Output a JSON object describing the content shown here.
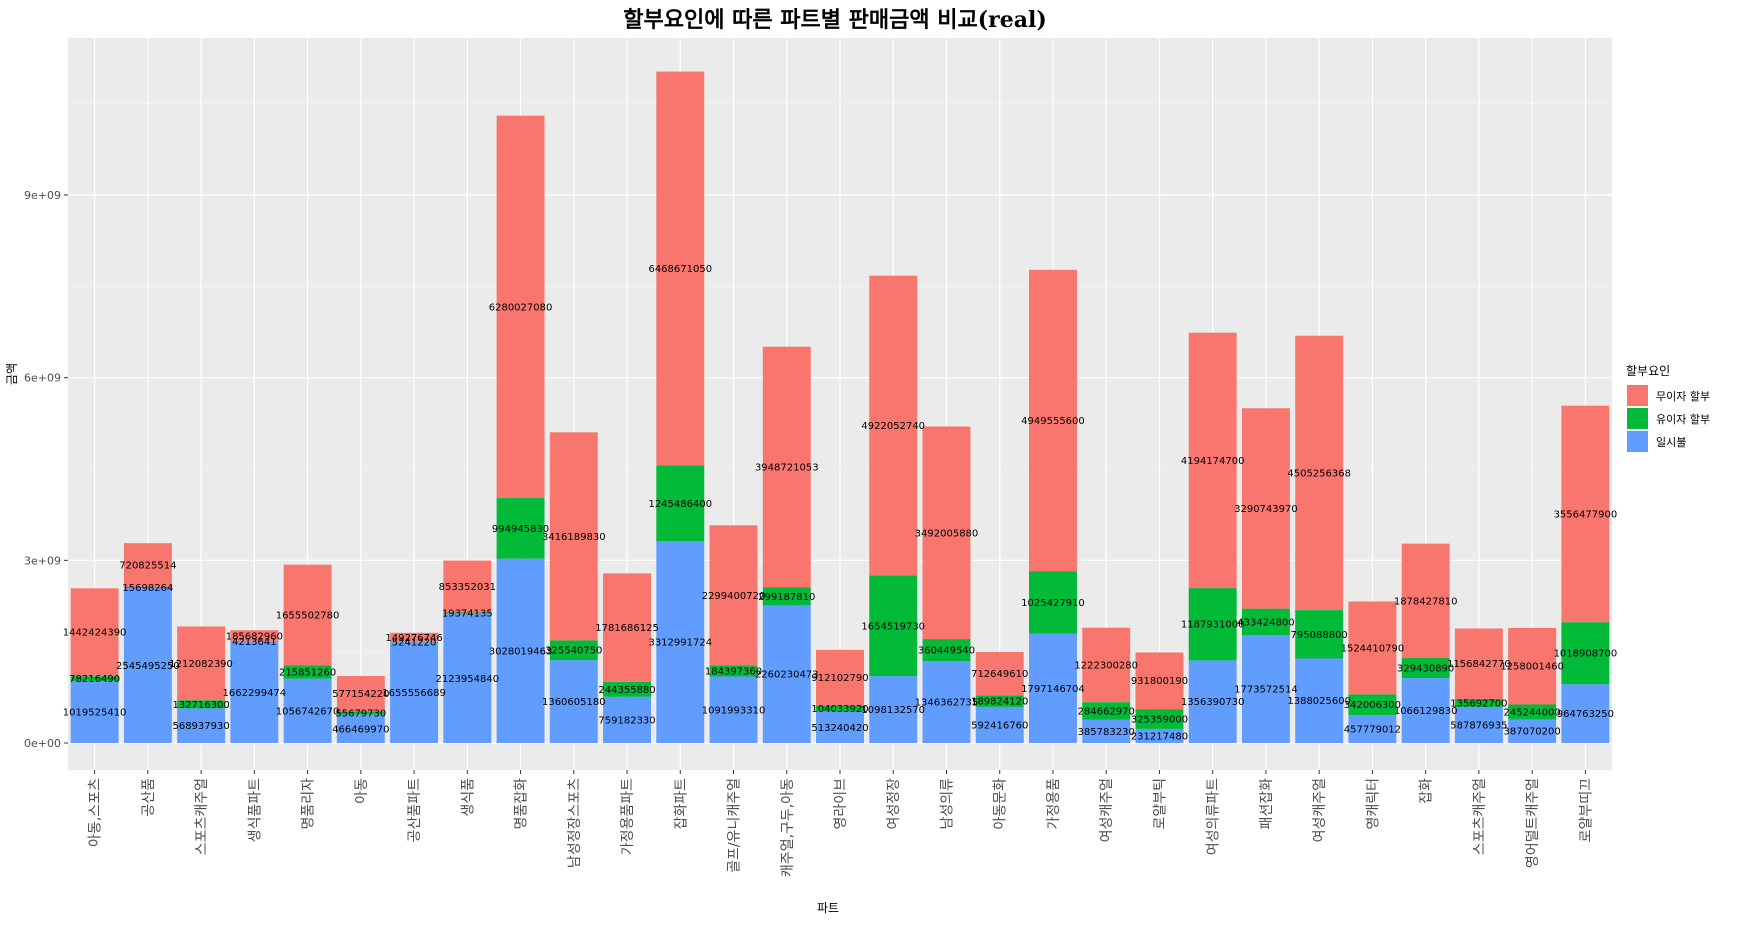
{
  "chart_data": {
    "type": "bar",
    "stacked": true,
    "title": "할부요인에 따른 파트별 판매금액 비교(real)",
    "xlabel": "파트",
    "ylabel": "금액",
    "ylim": [
      0,
      11500000000
    ],
    "y_ticks": [
      0,
      3000000000,
      6000000000,
      9000000000
    ],
    "y_tick_labels": [
      "0e+00",
      "3e+09",
      "6e+09",
      "9e+09"
    ],
    "grid": true,
    "legend": {
      "title": "할부요인",
      "position": "right",
      "entries": [
        "무이자 할부",
        "유이자 할부",
        "일시불"
      ]
    },
    "categories": [
      "아동,스포츠",
      "공산품",
      "스포츠캐주얼",
      "생식품파트",
      "명품리자",
      "아동",
      "공산품파트",
      "생식품",
      "명품잡화",
      "남성정장스포츠",
      "가정용품파트",
      "잡화파트",
      "골프/유니캐주얼",
      "캐주얼,구두,아동",
      "영라이브",
      "여성정장",
      "남성의류",
      "아동문화",
      "가정용품",
      "여성캐주얼",
      "로얄부틱",
      "여성의류파트",
      "패션잡화",
      "여성캐주얼",
      "영캐릭터",
      "잡화",
      "스포츠캐주얼",
      "영어덜트캐주얼",
      "로얄부띠끄"
    ],
    "series": [
      {
        "name": "일시불",
        "color": "#619CFF",
        "values": [
          1019525410,
          2545495250,
          568937930,
          1662299474,
          1056742670,
          466469970,
          1655556689,
          2123954840,
          3028019463,
          1360605180,
          759182330,
          3312991724,
          1091993310,
          2260230473,
          513240420,
          1098132570,
          1346362735,
          592416760,
          1797146704,
          385783230,
          231217480,
          1356390730,
          1773572514,
          1388025600,
          457779012,
          1066129830,
          587876935,
          387070200,
          964763250
        ]
      },
      {
        "name": "유이자 할부",
        "color": "#00BA38",
        "values": [
          78216490,
          15698264,
          132716300,
          4213641,
          215851260,
          55679730,
          5241220,
          19374135,
          994945830,
          325540750,
          244355880,
          1245486400,
          184397360,
          299187810,
          104033920,
          1654519730,
          360449540,
          189824120,
          1025427910,
          284662970,
          325359000,
          1187931000,
          433424800,
          795088800,
          342006300,
          329430890,
          135692700,
          245244000,
          1018908700
        ]
      },
      {
        "name": "무이자 할부",
        "color": "#F8766D",
        "values": [
          1442424390,
          720825514,
          1212082390,
          185682960,
          1655502780,
          577154220,
          149276746,
          853352031,
          6280027080,
          3416189830,
          1781686125,
          6468671050,
          2299400720,
          3948721053,
          912102790,
          4922052740,
          3492005880,
          712649610,
          4949555600,
          1222300280,
          931800190,
          4194174700,
          3290743970,
          4505256368,
          1524410790,
          1878427810,
          1156842770,
          1258001460,
          3556477900
        ]
      }
    ]
  },
  "colors": {
    "panel_bg": "#EBEBEB",
    "grid_major": "#FFFFFF",
    "grid_minor": "#F5F5F5"
  }
}
